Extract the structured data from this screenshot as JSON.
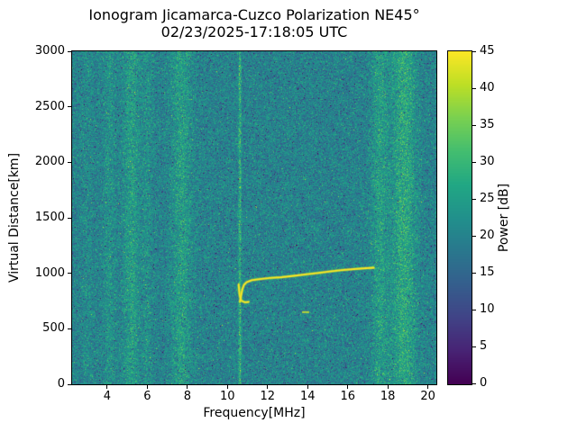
{
  "chart_data": {
    "type": "heatmap",
    "title": "Ionogram Jicamarca-Cuzco Polarization NE45°",
    "subtitle": "02/23/2025-17:18:05 UTC",
    "xlabel": "Frequency[MHz]",
    "ylabel": "Virtual Distance[km]",
    "colorbar_label": "Power [dB]",
    "colormap": "viridis",
    "xlim": [
      2.25,
      20.42
    ],
    "ylim": [
      0,
      3000
    ],
    "power_range_db": [
      0,
      45
    ],
    "x_ticks": [
      4,
      6,
      8,
      10,
      12,
      14,
      16,
      18,
      20
    ],
    "y_ticks": [
      0,
      500,
      1000,
      1500,
      2000,
      2500,
      3000
    ],
    "colorbar_ticks": [
      0,
      5,
      10,
      15,
      20,
      25,
      30,
      35,
      40,
      45
    ],
    "background_noise": {
      "mean_db": 20,
      "std_db": 4
    },
    "interference_bands": [
      {
        "center_mhz": 3.0,
        "width_mhz": 0.3,
        "boost_db": 1.5
      },
      {
        "center_mhz": 4.1,
        "width_mhz": 0.3,
        "boost_db": 3
      },
      {
        "center_mhz": 5.2,
        "width_mhz": 0.4,
        "boost_db": 5
      },
      {
        "center_mhz": 6.0,
        "width_mhz": 0.25,
        "boost_db": 2.5
      },
      {
        "center_mhz": 7.7,
        "width_mhz": 0.5,
        "boost_db": 5
      },
      {
        "center_mhz": 10.62,
        "width_mhz": 0.07,
        "boost_db": 9
      },
      {
        "center_mhz": 17.6,
        "width_mhz": 0.4,
        "boost_db": 5
      },
      {
        "center_mhz": 18.8,
        "width_mhz": 0.6,
        "boost_db": 7
      }
    ],
    "echo_trace": {
      "power_db": 45,
      "main_branch": [
        [
          10.62,
          745
        ],
        [
          10.68,
          800
        ],
        [
          10.74,
          855
        ],
        [
          10.82,
          895
        ],
        [
          10.95,
          920
        ],
        [
          11.2,
          937
        ],
        [
          11.6,
          948
        ],
        [
          12.1,
          957
        ],
        [
          12.7,
          965
        ],
        [
          13.3,
          977
        ],
        [
          13.9,
          990
        ],
        [
          14.5,
          1003
        ],
        [
          15.1,
          1016
        ],
        [
          15.7,
          1028
        ],
        [
          16.3,
          1038
        ],
        [
          16.9,
          1046
        ],
        [
          17.3,
          1050
        ]
      ],
      "cusp_branch": [
        [
          10.56,
          900
        ],
        [
          10.58,
          845
        ],
        [
          10.62,
          790
        ],
        [
          10.7,
          752
        ],
        [
          10.88,
          738
        ],
        [
          11.05,
          742
        ]
      ]
    },
    "artifact": {
      "freq_mhz": 13.9,
      "range_km": 650
    }
  }
}
